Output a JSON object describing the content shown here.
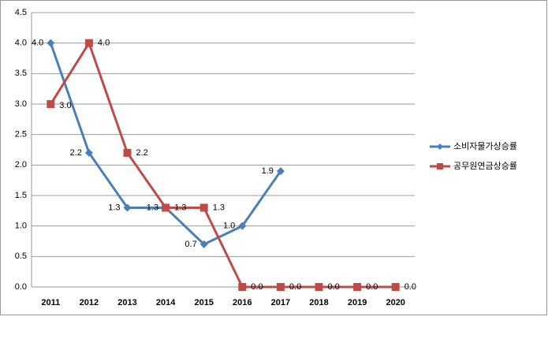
{
  "chart_data": {
    "type": "line",
    "categories": [
      "2011",
      "2012",
      "2013",
      "2014",
      "2015",
      "2016",
      "2017",
      "2018",
      "2019",
      "2020"
    ],
    "series": [
      {
        "name": "소비자물가상승률",
        "color": "#4a7ebb",
        "marker": "diamond",
        "values": [
          4.0,
          2.2,
          1.3,
          1.3,
          0.7,
          1.0,
          1.9,
          null,
          null,
          null
        ],
        "value_labels": [
          "4.0",
          "2.2",
          "1.3",
          "1.3",
          "0.7",
          "1.0",
          "1.9",
          null,
          null,
          null
        ]
      },
      {
        "name": "공무원연금상승률",
        "color": "#be4b48",
        "marker": "square",
        "values": [
          3.0,
          4.0,
          2.2,
          1.3,
          1.3,
          0.0,
          0.0,
          0.0,
          0.0,
          0.0
        ],
        "value_labels": [
          "3.0",
          "4.0",
          "2.2",
          "1.3",
          "1.3",
          "0.0",
          "0.0",
          "0.0",
          "0.0",
          "0.0"
        ]
      }
    ],
    "ylim": [
      0,
      4.5
    ],
    "yticks": [
      {
        "value": 0,
        "label": "0.0"
      },
      {
        "value": 0.5,
        "label": "0.5"
      },
      {
        "value": 1,
        "label": "1.0"
      },
      {
        "value": 1.5,
        "label": "1.5"
      },
      {
        "value": 2,
        "label": "2.0"
      },
      {
        "value": 2.5,
        "label": "2.5"
      },
      {
        "value": 3,
        "label": "3.0"
      },
      {
        "value": 3.5,
        "label": "3.5"
      },
      {
        "value": 4,
        "label": "4.0"
      },
      {
        "value": 4.5,
        "label": "4.5"
      }
    ],
    "grid": true,
    "legend": "right"
  }
}
